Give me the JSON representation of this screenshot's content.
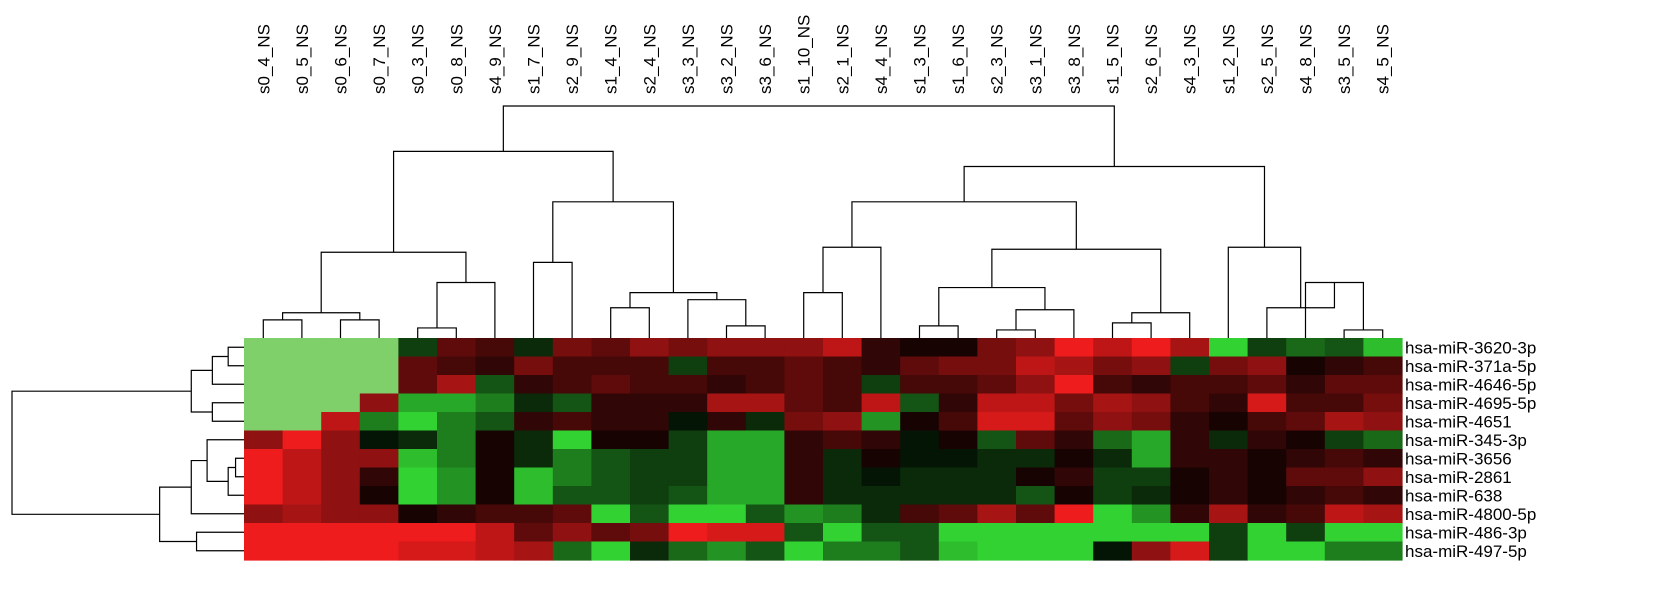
{
  "chart_data": {
    "type": "heatmap",
    "title": "",
    "xlabel": "",
    "ylabel": "",
    "columns": [
      "s0_4_NS",
      "s0_5_NS",
      "s0_6_NS",
      "s0_7_NS",
      "s0_3_NS",
      "s0_8_NS",
      "s4_9_NS",
      "s1_7_NS",
      "s2_9_NS",
      "s1_4_NS",
      "s2_4_NS",
      "s3_3_NS",
      "s3_2_NS",
      "s3_6_NS",
      "s1_10_NS",
      "s2_1_NS",
      "s4_4_NS",
      "s1_3_NS",
      "s1_6_NS",
      "s2_3_NS",
      "s3_1_NS",
      "s3_8_NS",
      "s1_5_NS",
      "s2_6_NS",
      "s4_3_NS",
      "s1_2_NS",
      "s2_5_NS",
      "s4_8_NS",
      "s3_5_NS",
      "s4_5_NS"
    ],
    "rows": [
      "hsa-miR-3620-3p",
      "hsa-miR-371a-5p",
      "hsa-miR-4646-5p",
      "hsa-miR-4695-5p",
      "hsa-miR-4651",
      "hsa-miR-345-3p",
      "hsa-miR-3656",
      "hsa-miR-2861",
      "hsa-miR-638",
      "hsa-miR-4800-5p",
      "hsa-miR-486-3p",
      "hsa-miR-497-5p"
    ],
    "values": [
      [
        -3,
        -3,
        -3,
        -3,
        -0.3,
        0.4,
        0.3,
        -0.2,
        0.5,
        0.4,
        0.6,
        0.5,
        0.6,
        0.6,
        0.6,
        0.8,
        0.2,
        0.1,
        0.1,
        0.5,
        0.6,
        1,
        0.8,
        1,
        0.7,
        -2,
        -0.3,
        -0.5,
        -0.4,
        -0.9
      ],
      [
        -3,
        -3,
        -3,
        -3,
        0.4,
        0.3,
        0.2,
        0.5,
        0.3,
        0.3,
        0.3,
        -0.3,
        0.3,
        0.3,
        0.4,
        0.3,
        0.2,
        0.4,
        0.5,
        0.5,
        0.8,
        0.7,
        0.5,
        0.6,
        -0.3,
        0.5,
        0.6,
        0.1,
        0.2,
        0.3
      ],
      [
        -3,
        -3,
        -3,
        -3,
        0.4,
        0.7,
        -0.4,
        0.2,
        0.3,
        0.4,
        0.3,
        0.3,
        0.2,
        0.3,
        0.4,
        0.3,
        -0.3,
        0.3,
        0.3,
        0.4,
        0.6,
        1,
        0.3,
        0.2,
        0.3,
        0.3,
        0.4,
        0.2,
        0.4,
        0.4
      ],
      [
        -3,
        -3,
        -3,
        0.6,
        -0.8,
        -0.8,
        -0.6,
        -0.2,
        -0.4,
        0.2,
        0.2,
        0.2,
        0.7,
        0.7,
        0.4,
        0.3,
        0.8,
        -0.4,
        0.2,
        0.8,
        0.8,
        0.5,
        0.7,
        0.6,
        0.3,
        0.2,
        0.9,
        0.3,
        0.3,
        0.5
      ],
      [
        -3,
        -3,
        0.8,
        -0.6,
        -1,
        -0.6,
        -0.4,
        0.2,
        0.3,
        0.2,
        0.2,
        -0.1,
        0.2,
        -0.2,
        0.5,
        0.6,
        -0.7,
        0.1,
        0.3,
        0.9,
        0.9,
        0.4,
        0.6,
        0.5,
        0.2,
        0.1,
        0.3,
        0.4,
        0.7,
        0.6
      ],
      [
        0.6,
        1,
        0.6,
        -0.1,
        -0.2,
        -0.6,
        0.1,
        -0.2,
        -1,
        0.1,
        0.1,
        -0.3,
        -0.8,
        -0.8,
        0.2,
        0.3,
        0.2,
        -0.1,
        0.1,
        -0.4,
        0.4,
        0.2,
        -0.5,
        -0.8,
        0.2,
        -0.2,
        0.2,
        0.1,
        -0.3,
        -0.5
      ],
      [
        1,
        0.8,
        0.6,
        0.6,
        -0.9,
        -0.6,
        0.1,
        -0.2,
        -0.6,
        -0.4,
        -0.3,
        -0.3,
        -0.8,
        -0.8,
        0.2,
        -0.2,
        0.1,
        -0.1,
        -0.1,
        -0.2,
        -0.2,
        0.1,
        -0.2,
        -0.8,
        0.2,
        0.2,
        0.1,
        0.2,
        0.3,
        0.2
      ],
      [
        1,
        0.8,
        0.6,
        0.2,
        -1,
        -0.7,
        0.1,
        -0.9,
        -0.6,
        -0.4,
        -0.3,
        -0.3,
        -0.8,
        -0.8,
        0.2,
        -0.2,
        -0.1,
        -0.2,
        -0.2,
        -0.2,
        0.1,
        0.2,
        -0.3,
        -0.3,
        0.1,
        0.2,
        0.1,
        0.4,
        0.4,
        0.6
      ],
      [
        1,
        0.8,
        0.6,
        0.1,
        -1,
        -0.7,
        0.1,
        -0.9,
        -0.4,
        -0.4,
        -0.3,
        -0.4,
        -0.8,
        -0.8,
        0.2,
        -0.2,
        -0.2,
        -0.2,
        -0.2,
        -0.2,
        -0.4,
        0.1,
        -0.3,
        -0.2,
        0.1,
        0.2,
        0.1,
        0.2,
        0.3,
        0.2
      ],
      [
        0.6,
        0.7,
        0.6,
        0.6,
        0.1,
        0.2,
        0.3,
        0.3,
        0.4,
        -1.2,
        -0.4,
        -1,
        -1.2,
        -0.4,
        -0.7,
        -0.6,
        -0.2,
        0.3,
        0.4,
        0.7,
        0.4,
        1,
        -1.1,
        -0.7,
        0.2,
        0.7,
        0.2,
        0.3,
        0.8,
        0.7
      ],
      [
        1,
        1,
        1,
        1,
        1,
        1,
        0.8,
        0.4,
        0.6,
        0.4,
        0.5,
        1,
        0.9,
        0.9,
        -0.4,
        -2,
        -0.4,
        -0.4,
        -2,
        -2,
        -2,
        -2,
        -2,
        -2,
        -2,
        -0.3,
        -2,
        -0.3,
        -2,
        -2
      ],
      [
        1,
        1,
        1,
        1,
        0.9,
        0.9,
        0.8,
        0.7,
        -0.5,
        -1,
        -0.2,
        -0.5,
        -0.7,
        -0.4,
        -2,
        -0.6,
        -0.6,
        -0.4,
        -0.9,
        -2,
        -2,
        -2,
        -0.1,
        0.6,
        0.9,
        -0.3,
        -2,
        -2,
        -0.6,
        -0.6
      ]
    ],
    "color_scale": {
      "low": "#32d232",
      "mid": "#000000",
      "high": "#ee1c1c",
      "missing": "#7fcf6a"
    },
    "column_dendrogram": [
      {
        "a": 0,
        "b": 1,
        "h": 0.18
      },
      {
        "a": 2,
        "b": 3,
        "h": 0.18
      },
      {
        "a": "n0",
        "b": "n1",
        "h": 0.25
      },
      {
        "a": 4,
        "b": 5,
        "h": 0.1
      },
      {
        "a": "n3",
        "b": 6,
        "h": 0.55
      },
      {
        "a": "n2",
        "b": "n4",
        "h": 0.85
      },
      {
        "a": 7,
        "b": 8,
        "h": 0.75
      },
      {
        "a": 9,
        "b": 10,
        "h": 0.3
      },
      {
        "a": 12,
        "b": 13,
        "h": 0.12
      },
      {
        "a": 11,
        "b": "n8",
        "h": 0.38
      },
      {
        "a": "n7",
        "b": "n9",
        "h": 0.45
      },
      {
        "a": "n6",
        "b": "n10",
        "h": 1.35
      },
      {
        "a": "n5",
        "b": "n11",
        "h": 1.85
      },
      {
        "a": 14,
        "b": 15,
        "h": 0.45
      },
      {
        "a": "n13",
        "b": 16,
        "h": 0.9
      },
      {
        "a": 17,
        "b": 18,
        "h": 0.12
      },
      {
        "a": 19,
        "b": 20,
        "h": 0.08
      },
      {
        "a": 21,
        "b": "n16",
        "h": 0.28
      },
      {
        "a": "n15",
        "b": "n17",
        "h": 0.5
      },
      {
        "a": 22,
        "b": 23,
        "h": 0.15
      },
      {
        "a": "n19",
        "b": 24,
        "h": 0.25
      },
      {
        "a": "n18",
        "b": "n20",
        "h": 0.88
      },
      {
        "a": "n14",
        "b": "n21",
        "h": 1.35
      },
      {
        "a": 28,
        "b": 29,
        "h": 0.08
      },
      {
        "a": 27,
        "b": "n23",
        "h": 0.55
      },
      {
        "a": 26,
        "b": "n24",
        "h": 0.3
      },
      {
        "a": 25,
        "b": "n25",
        "h": 0.9
      },
      {
        "a": "n22",
        "b": "n26",
        "h": 1.7
      },
      {
        "a": "n12",
        "b": "n27",
        "h": 2.3
      }
    ],
    "row_dendrogram": [
      {
        "a": 0,
        "b": 1,
        "h": 0.15
      },
      {
        "a": "n0",
        "b": 2,
        "h": 0.3
      },
      {
        "a": 3,
        "b": 4,
        "h": 0.3
      },
      {
        "a": "n1",
        "b": "n2",
        "h": 0.5
      },
      {
        "a": 6,
        "b": 7,
        "h": 0.08
      },
      {
        "a": "n4",
        "b": 8,
        "h": 0.15
      },
      {
        "a": 5,
        "b": "n5",
        "h": 0.35
      },
      {
        "a": "n6",
        "b": 9,
        "h": 0.5
      },
      {
        "a": 10,
        "b": 11,
        "h": 0.45
      },
      {
        "a": "n7",
        "b": "n8",
        "h": 0.8
      },
      {
        "a": "n3",
        "b": "n9",
        "h": 2.2
      }
    ]
  }
}
